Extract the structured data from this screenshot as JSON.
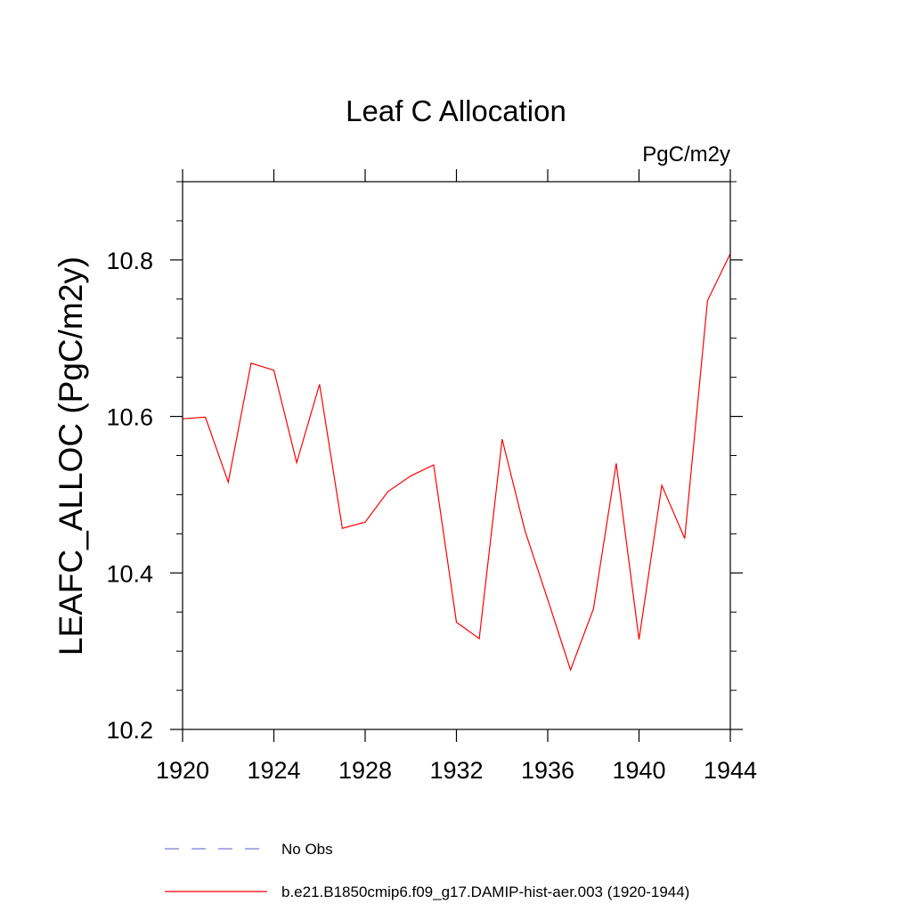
{
  "chart_data": {
    "type": "line",
    "title": "Leaf C Allocation",
    "units_label": "PgC/m2y",
    "ylabel": "LEAFC_ALLOC  (PgC/m2y)",
    "xlabel": "",
    "xlim": [
      1920,
      1944
    ],
    "ylim": [
      10.2,
      10.9
    ],
    "x_ticks": [
      1920,
      1924,
      1928,
      1932,
      1936,
      1940,
      1944
    ],
    "x_tick_labels": [
      "1920",
      "1924",
      "1928",
      "1932",
      "1936",
      "1940",
      "1944"
    ],
    "y_ticks": [
      10.2,
      10.4,
      10.6,
      10.8
    ],
    "y_tick_labels": [
      "10.2",
      "10.4",
      "10.6",
      "10.8"
    ],
    "grid": false,
    "legend_position": "bottom",
    "series": [
      {
        "name": "b.e21.B1850cmip6.f09_g17.DAMIP-hist-aer.003 (1920-1944)",
        "color": "#ff0000",
        "dash": "solid",
        "x": [
          1920,
          1921,
          1922,
          1923,
          1924,
          1925,
          1926,
          1927,
          1928,
          1929,
          1930,
          1931,
          1932,
          1933,
          1934,
          1935,
          1936,
          1937,
          1938,
          1939,
          1940,
          1941,
          1942,
          1943,
          1944
        ],
        "y": [
          10.597,
          10.599,
          10.516,
          10.668,
          10.659,
          10.541,
          10.641,
          10.457,
          10.465,
          10.504,
          10.524,
          10.538,
          10.337,
          10.316,
          10.571,
          10.454,
          10.366,
          10.276,
          10.354,
          10.54,
          10.315,
          10.512,
          10.444,
          10.748,
          10.808
        ]
      }
    ],
    "legend": [
      {
        "label": "No Obs",
        "color": "#7b7bd6",
        "dash": "dashed"
      },
      {
        "label": "b.e21.B1850cmip6.f09_g17.DAMIP-hist-aer.003 (1920-1944)",
        "color": "#ff0000",
        "dash": "solid"
      }
    ]
  }
}
